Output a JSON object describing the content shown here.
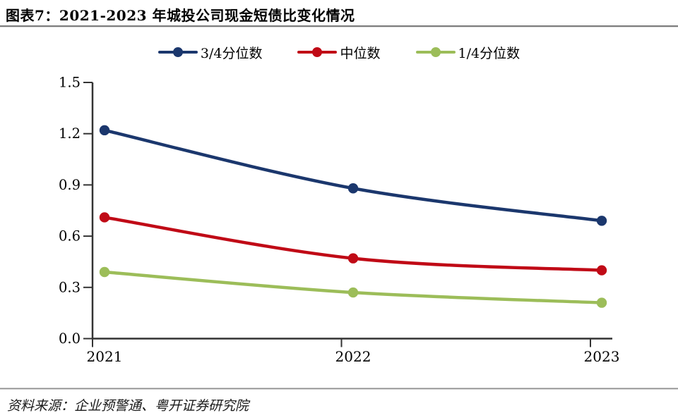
{
  "title": "图表7：2021-2023 年城投公司现金短债比变化情况",
  "source": "资料来源：企业预警通、粤开证券研究院",
  "colors": {
    "series_blue": "#1b376d",
    "series_red": "#c00a16",
    "series_green": "#9cbd59",
    "axis": "#333333",
    "title_rule": "#7d7d7d",
    "footer_rule": "#8f8f8f"
  },
  "chart_data": {
    "type": "line",
    "categories": [
      "2021",
      "2022",
      "2023"
    ],
    "series": [
      {
        "name": "3/4分位数",
        "color": "#1b376d",
        "values": [
          1.22,
          0.88,
          0.69
        ]
      },
      {
        "name": "中位数",
        "color": "#c00a16",
        "values": [
          0.71,
          0.47,
          0.4
        ]
      },
      {
        "name": "1/4分位数",
        "color": "#9cbd59",
        "values": [
          0.39,
          0.27,
          0.21
        ]
      }
    ],
    "title": "2021-2023 年城投公司现金短债比变化情况",
    "xlabel": "",
    "ylabel": "",
    "ylim": [
      0,
      1.5
    ],
    "y_ticks": [
      0.0,
      0.3,
      0.6,
      0.9,
      1.2,
      1.5
    ],
    "y_tick_labels": [
      "0.0",
      "0.3",
      "0.6",
      "0.9",
      "1.2",
      "1.5"
    ],
    "grid": false,
    "legend_position": "top",
    "line_style": "smoothed"
  }
}
